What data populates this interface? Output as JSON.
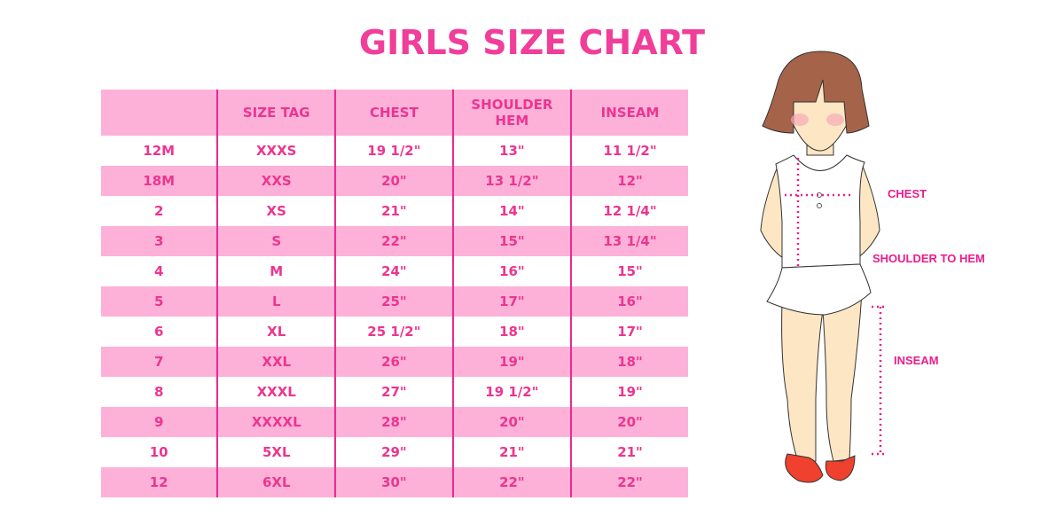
{
  "title": "GIRLS SIZE CHART",
  "table": {
    "headers": [
      "",
      "SIZE TAG",
      "CHEST",
      "SHOULDER HEM",
      "INSEAM"
    ],
    "rows": [
      [
        "12M",
        "XXXS",
        "19 1/2\"",
        "13\"",
        "11 1/2\""
      ],
      [
        "18M",
        "XXS",
        "20\"",
        "13 1/2\"",
        "12\""
      ],
      [
        "2",
        "XS",
        "21\"",
        "14\"",
        "12 1/4\""
      ],
      [
        "3",
        "S",
        "22\"",
        "15\"",
        "13 1/4\""
      ],
      [
        "4",
        "M",
        "24\"",
        "16\"",
        "15\""
      ],
      [
        "5",
        "L",
        "25\"",
        "17\"",
        "16\""
      ],
      [
        "6",
        "XL",
        "25 1/2\"",
        "18\"",
        "17\""
      ],
      [
        "7",
        "XXL",
        "26\"",
        "19\"",
        "18\""
      ],
      [
        "8",
        "XXXL",
        "27\"",
        "19 1/2\"",
        "19\""
      ],
      [
        "9",
        "XXXXL",
        "28\"",
        "20\"",
        "20\""
      ],
      [
        "10",
        "5XL",
        "29\"",
        "21\"",
        "21\""
      ],
      [
        "12",
        "6XL",
        "30\"",
        "22\"",
        "22\""
      ]
    ]
  },
  "figure": {
    "labels": {
      "chest": "CHEST",
      "shoulder": "SHOULDER TO HEM",
      "inseam": "INSEAM"
    }
  },
  "colors": {
    "accent": "#ec3590",
    "row_pink": "#fdb1d9",
    "hair": "#a5634a",
    "skin": "#fde6c4",
    "shoes": "#f0402e"
  }
}
